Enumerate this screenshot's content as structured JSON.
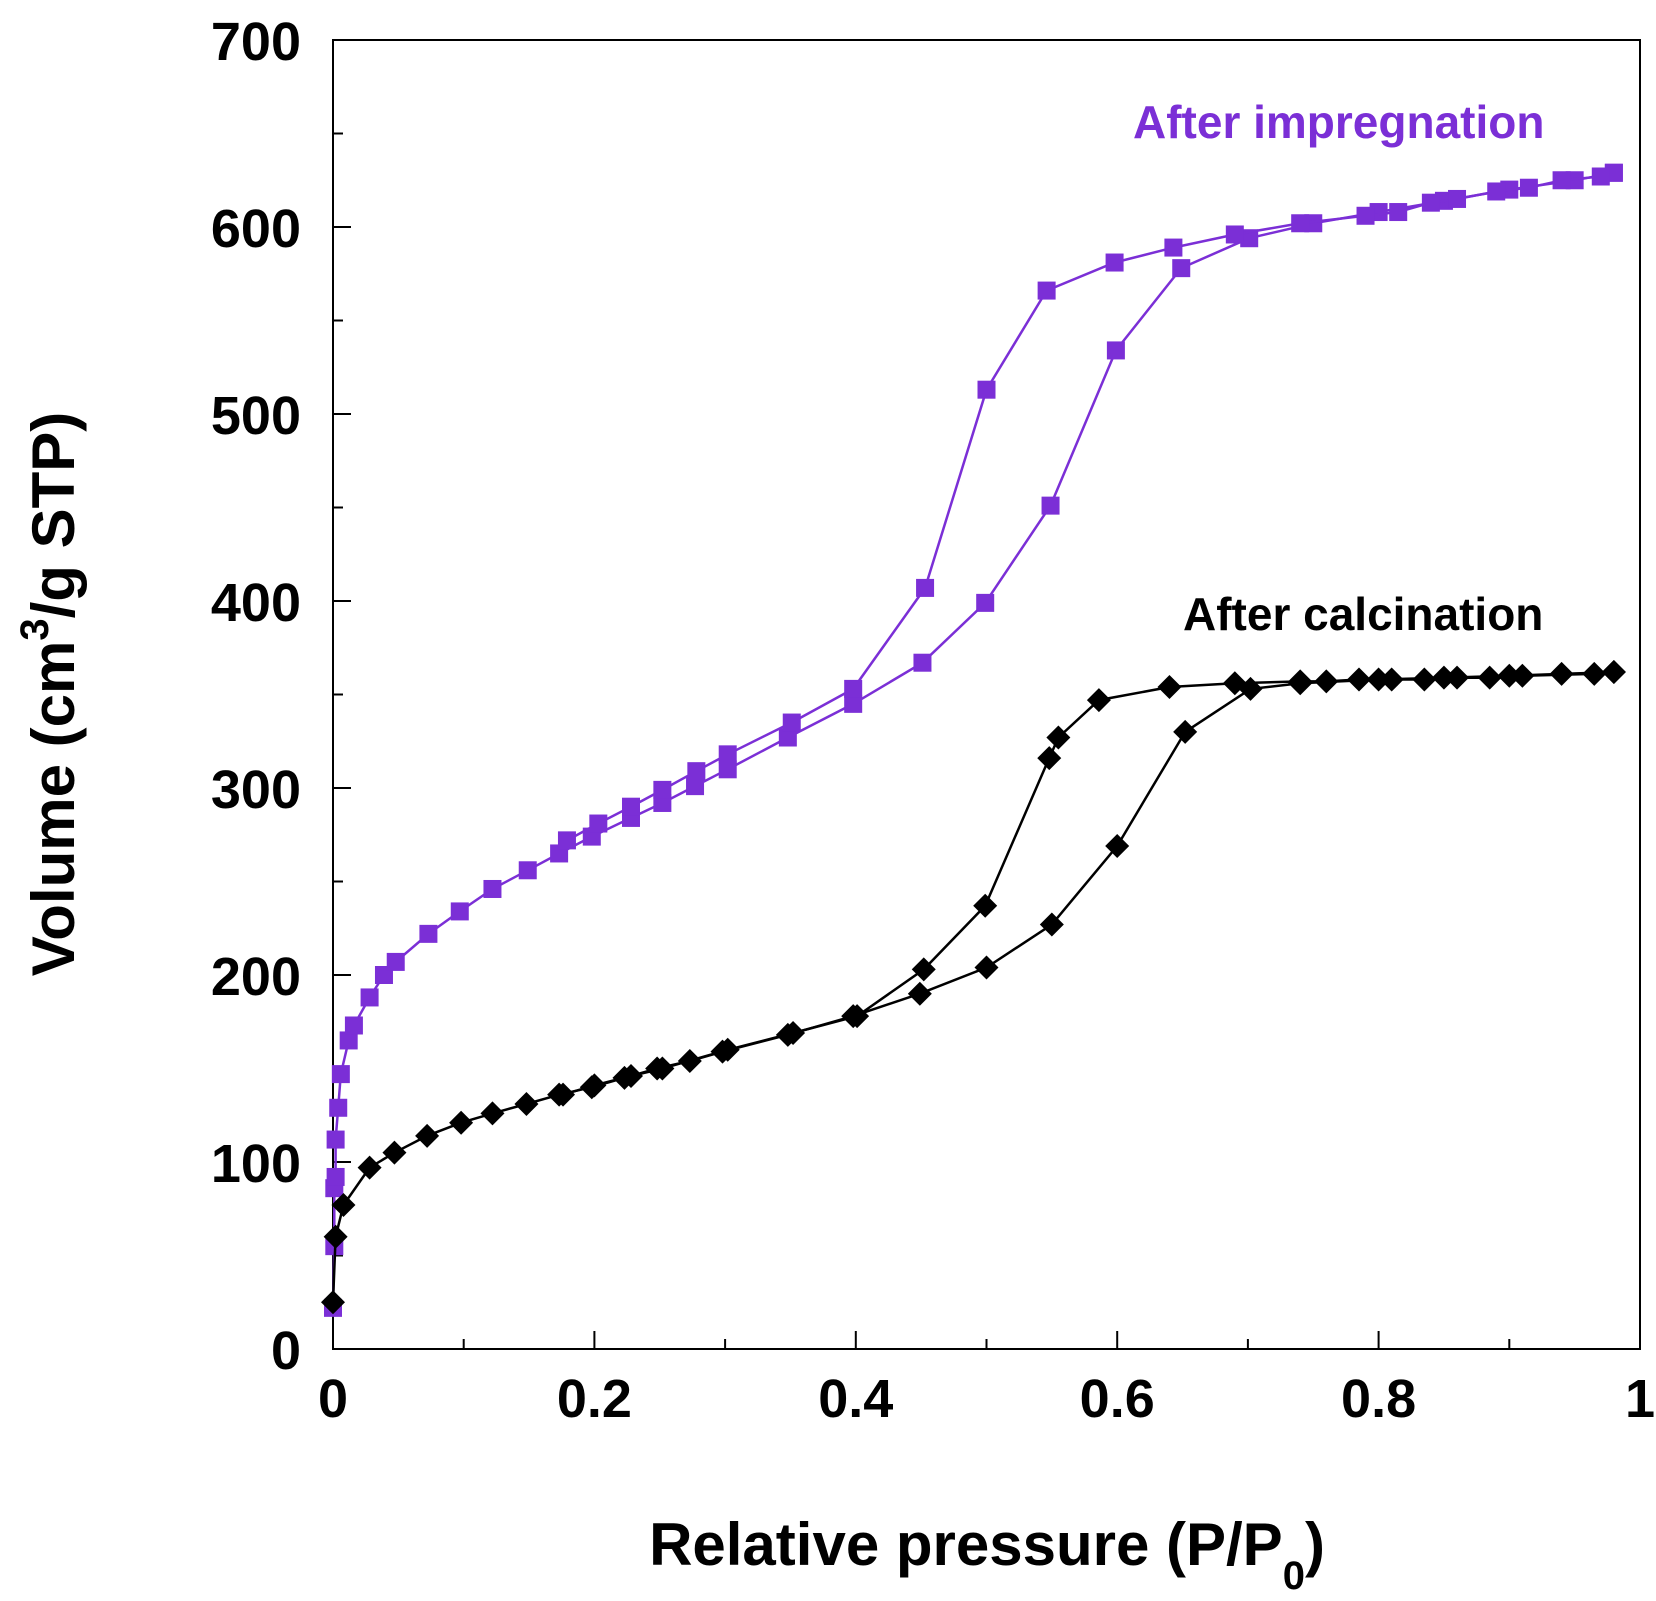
{
  "chart_data": {
    "type": "line",
    "title": "",
    "xlabel_parts": {
      "main": "Relative pressure (P/P",
      "sub": "0",
      "end": ")"
    },
    "ylabel_parts": {
      "main": "Volume (cm",
      "sup": "3",
      "end": "/g STP)"
    },
    "xlim": [
      0,
      1
    ],
    "ylim": [
      0,
      700
    ],
    "xticks": [
      0,
      0.2,
      0.4,
      0.6,
      0.8,
      1
    ],
    "xtick_labels": [
      "0",
      "0.2",
      "0.4",
      "0.6",
      "0.8",
      "1"
    ],
    "yticks": [
      0,
      100,
      200,
      300,
      400,
      500,
      600,
      700
    ],
    "ytick_labels": [
      "0",
      "100",
      "200",
      "300",
      "400",
      "500",
      "600",
      "700"
    ],
    "grid": false,
    "series": [
      {
        "name": "After impregnation",
        "color": "#7B2FD6",
        "marker": "square",
        "adsorption": [
          [
            0.0,
            22
          ],
          [
            0.001,
            55
          ],
          [
            0.001,
            86
          ],
          [
            0.002,
            92
          ],
          [
            0.002,
            112
          ],
          [
            0.004,
            129
          ],
          [
            0.006,
            147
          ],
          [
            0.012,
            165
          ],
          [
            0.016,
            173
          ],
          [
            0.028,
            188
          ],
          [
            0.039,
            200
          ],
          [
            0.048,
            207
          ],
          [
            0.073,
            222
          ],
          [
            0.097,
            234
          ],
          [
            0.122,
            246
          ],
          [
            0.149,
            256
          ],
          [
            0.173,
            265
          ],
          [
            0.198,
            274
          ],
          [
            0.228,
            284
          ],
          [
            0.252,
            292
          ],
          [
            0.277,
            301
          ],
          [
            0.302,
            310
          ],
          [
            0.348,
            327
          ],
          [
            0.398,
            345
          ],
          [
            0.451,
            367
          ],
          [
            0.499,
            399
          ],
          [
            0.549,
            451
          ],
          [
            0.599,
            534
          ],
          [
            0.649,
            578
          ],
          [
            0.701,
            594
          ],
          [
            0.75,
            602
          ],
          [
            0.8,
            608
          ],
          [
            0.85,
            614
          ],
          [
            0.9,
            620
          ],
          [
            0.95,
            625
          ],
          [
            0.98,
            629
          ]
        ],
        "desorption": [
          [
            0.98,
            629
          ],
          [
            0.97,
            627
          ],
          [
            0.94,
            625
          ],
          [
            0.915,
            621
          ],
          [
            0.89,
            619
          ],
          [
            0.86,
            615
          ],
          [
            0.84,
            613
          ],
          [
            0.815,
            608
          ],
          [
            0.79,
            606
          ],
          [
            0.74,
            602
          ],
          [
            0.69,
            596
          ],
          [
            0.643,
            589
          ],
          [
            0.598,
            581
          ],
          [
            0.546,
            566
          ],
          [
            0.5,
            513
          ],
          [
            0.453,
            407
          ],
          [
            0.398,
            353
          ],
          [
            0.351,
            335
          ],
          [
            0.302,
            318
          ],
          [
            0.278,
            309
          ],
          [
            0.252,
            299
          ],
          [
            0.228,
            290
          ],
          [
            0.203,
            281
          ],
          [
            0.179,
            272
          ]
        ]
      },
      {
        "name": "After calcination",
        "color": "#000000",
        "marker": "diamond",
        "adsorption": [
          [
            0.0,
            25
          ],
          [
            0.002,
            60
          ],
          [
            0.008,
            77
          ],
          [
            0.028,
            97
          ],
          [
            0.047,
            105
          ],
          [
            0.072,
            114
          ],
          [
            0.098,
            121
          ],
          [
            0.122,
            126
          ],
          [
            0.148,
            131
          ],
          [
            0.173,
            136
          ],
          [
            0.198,
            140
          ],
          [
            0.223,
            145
          ],
          [
            0.248,
            150
          ],
          [
            0.273,
            154
          ],
          [
            0.298,
            159
          ],
          [
            0.348,
            168
          ],
          [
            0.398,
            178
          ],
          [
            0.449,
            190
          ],
          [
            0.5,
            204
          ],
          [
            0.55,
            227
          ],
          [
            0.6,
            269
          ],
          [
            0.652,
            330
          ],
          [
            0.702,
            353
          ],
          [
            0.74,
            356
          ],
          [
            0.8,
            358
          ],
          [
            0.85,
            359
          ],
          [
            0.9,
            360
          ],
          [
            0.94,
            361
          ],
          [
            0.98,
            362
          ]
        ],
        "desorption": [
          [
            0.98,
            362
          ],
          [
            0.965,
            361
          ],
          [
            0.91,
            360
          ],
          [
            0.885,
            359
          ],
          [
            0.86,
            359
          ],
          [
            0.835,
            358
          ],
          [
            0.81,
            358
          ],
          [
            0.785,
            358
          ],
          [
            0.76,
            357
          ],
          [
            0.74,
            357
          ],
          [
            0.69,
            356
          ],
          [
            0.64,
            354
          ],
          [
            0.586,
            347
          ],
          [
            0.555,
            327
          ],
          [
            0.548,
            316
          ],
          [
            0.499,
            237
          ],
          [
            0.452,
            203
          ],
          [
            0.401,
            178
          ],
          [
            0.352,
            169
          ],
          [
            0.302,
            160
          ],
          [
            0.252,
            150
          ],
          [
            0.228,
            146
          ],
          [
            0.2,
            141
          ],
          [
            0.176,
            136
          ]
        ]
      }
    ],
    "annotations": [
      {
        "text": "After impregnation",
        "series": 0
      },
      {
        "text": "After calcination",
        "series": 1
      }
    ]
  }
}
